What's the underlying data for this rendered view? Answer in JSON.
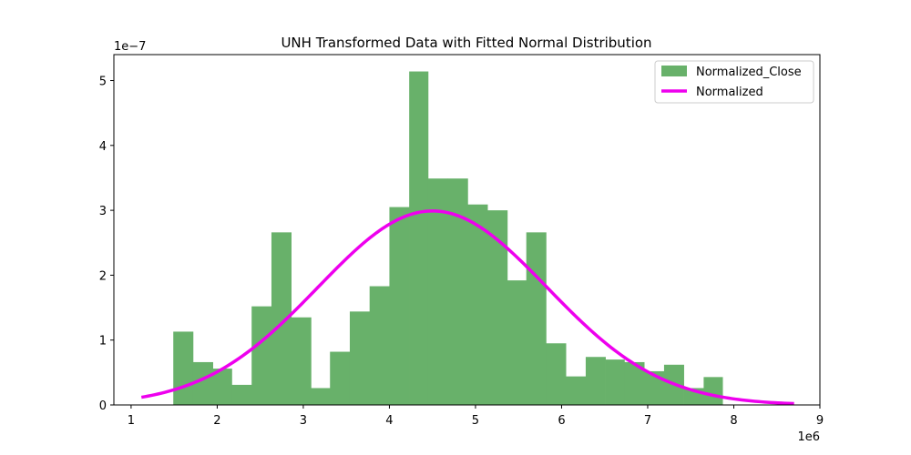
{
  "chart_data": {
    "type": "bar",
    "title": "UNH Transformed Data with Fitted Normal Distribution",
    "xlabel": "",
    "ylabel": "",
    "x_offset_label": "1e6",
    "y_offset_label": "1e−7",
    "xlim": [
      0.8,
      9.0
    ],
    "ylim": [
      0,
      5.4
    ],
    "x_ticks": [
      1,
      2,
      3,
      4,
      5,
      6,
      7,
      8,
      9
    ],
    "y_ticks": [
      0,
      1,
      2,
      3,
      4,
      5
    ],
    "grid": false,
    "legend_position": "top-right",
    "bin_edges": [
      1.49,
      1.72,
      1.95,
      2.17,
      2.4,
      2.63,
      2.86,
      3.09,
      3.31,
      3.54,
      3.77,
      4.0,
      4.23,
      4.45,
      4.68,
      4.91,
      5.14,
      5.37,
      5.59,
      5.82,
      6.05,
      6.28,
      6.51,
      6.73,
      6.96,
      7.19,
      7.42,
      7.65,
      7.87
    ],
    "series": [
      {
        "name": "Normalized_Close",
        "kind": "histogram",
        "color": "#68b16a",
        "values": [
          1.13,
          0.66,
          0.56,
          0.31,
          1.52,
          2.66,
          1.35,
          0.26,
          0.82,
          1.44,
          1.83,
          3.05,
          5.14,
          3.49,
          3.49,
          3.09,
          3.0,
          1.92,
          2.66,
          0.95,
          0.44,
          0.74,
          0.7,
          0.66,
          0.52,
          0.62,
          0.26,
          0.43
        ]
      },
      {
        "name": "Normalized",
        "kind": "normal_pdf_curve",
        "color": "#ee00ee",
        "mean": 4.5,
        "std": 1.33,
        "x_range": [
          1.12,
          8.7
        ],
        "peak": 2.99
      }
    ]
  }
}
